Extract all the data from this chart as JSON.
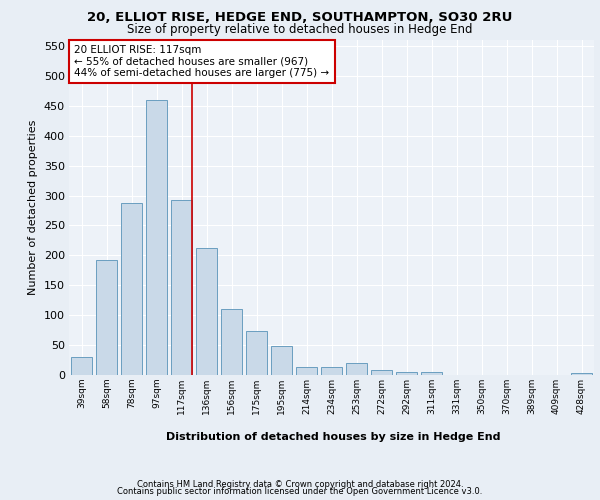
{
  "title1": "20, ELLIOT RISE, HEDGE END, SOUTHAMPTON, SO30 2RU",
  "title2": "Size of property relative to detached houses in Hedge End",
  "xlabel": "Distribution of detached houses by size in Hedge End",
  "ylabel": "Number of detached properties",
  "footer1": "Contains HM Land Registry data © Crown copyright and database right 2024.",
  "footer2": "Contains public sector information licensed under the Open Government Licence v3.0.",
  "annotation_title": "20 ELLIOT RISE: 117sqm",
  "annotation_line1": "← 55% of detached houses are smaller (967)",
  "annotation_line2": "44% of semi-detached houses are larger (775) →",
  "bar_categories": [
    "39sqm",
    "58sqm",
    "78sqm",
    "97sqm",
    "117sqm",
    "136sqm",
    "156sqm",
    "175sqm",
    "195sqm",
    "214sqm",
    "234sqm",
    "253sqm",
    "272sqm",
    "292sqm",
    "311sqm",
    "331sqm",
    "350sqm",
    "370sqm",
    "389sqm",
    "409sqm",
    "428sqm"
  ],
  "bar_values": [
    30,
    192,
    288,
    460,
    293,
    213,
    110,
    73,
    48,
    13,
    13,
    20,
    8,
    5,
    5,
    0,
    0,
    0,
    0,
    0,
    4
  ],
  "bar_color": "#c9d9e8",
  "bar_edge_color": "#6a9ec0",
  "marker_color": "#cc0000",
  "marker_index": 4,
  "ylim": [
    0,
    560
  ],
  "yticks": [
    0,
    50,
    100,
    150,
    200,
    250,
    300,
    350,
    400,
    450,
    500,
    550
  ],
  "bg_color": "#e8eef5",
  "plot_bg_color": "#edf2f8",
  "grid_color": "#ffffff",
  "annotation_box_color": "#ffffff",
  "annotation_box_edge": "#cc0000"
}
